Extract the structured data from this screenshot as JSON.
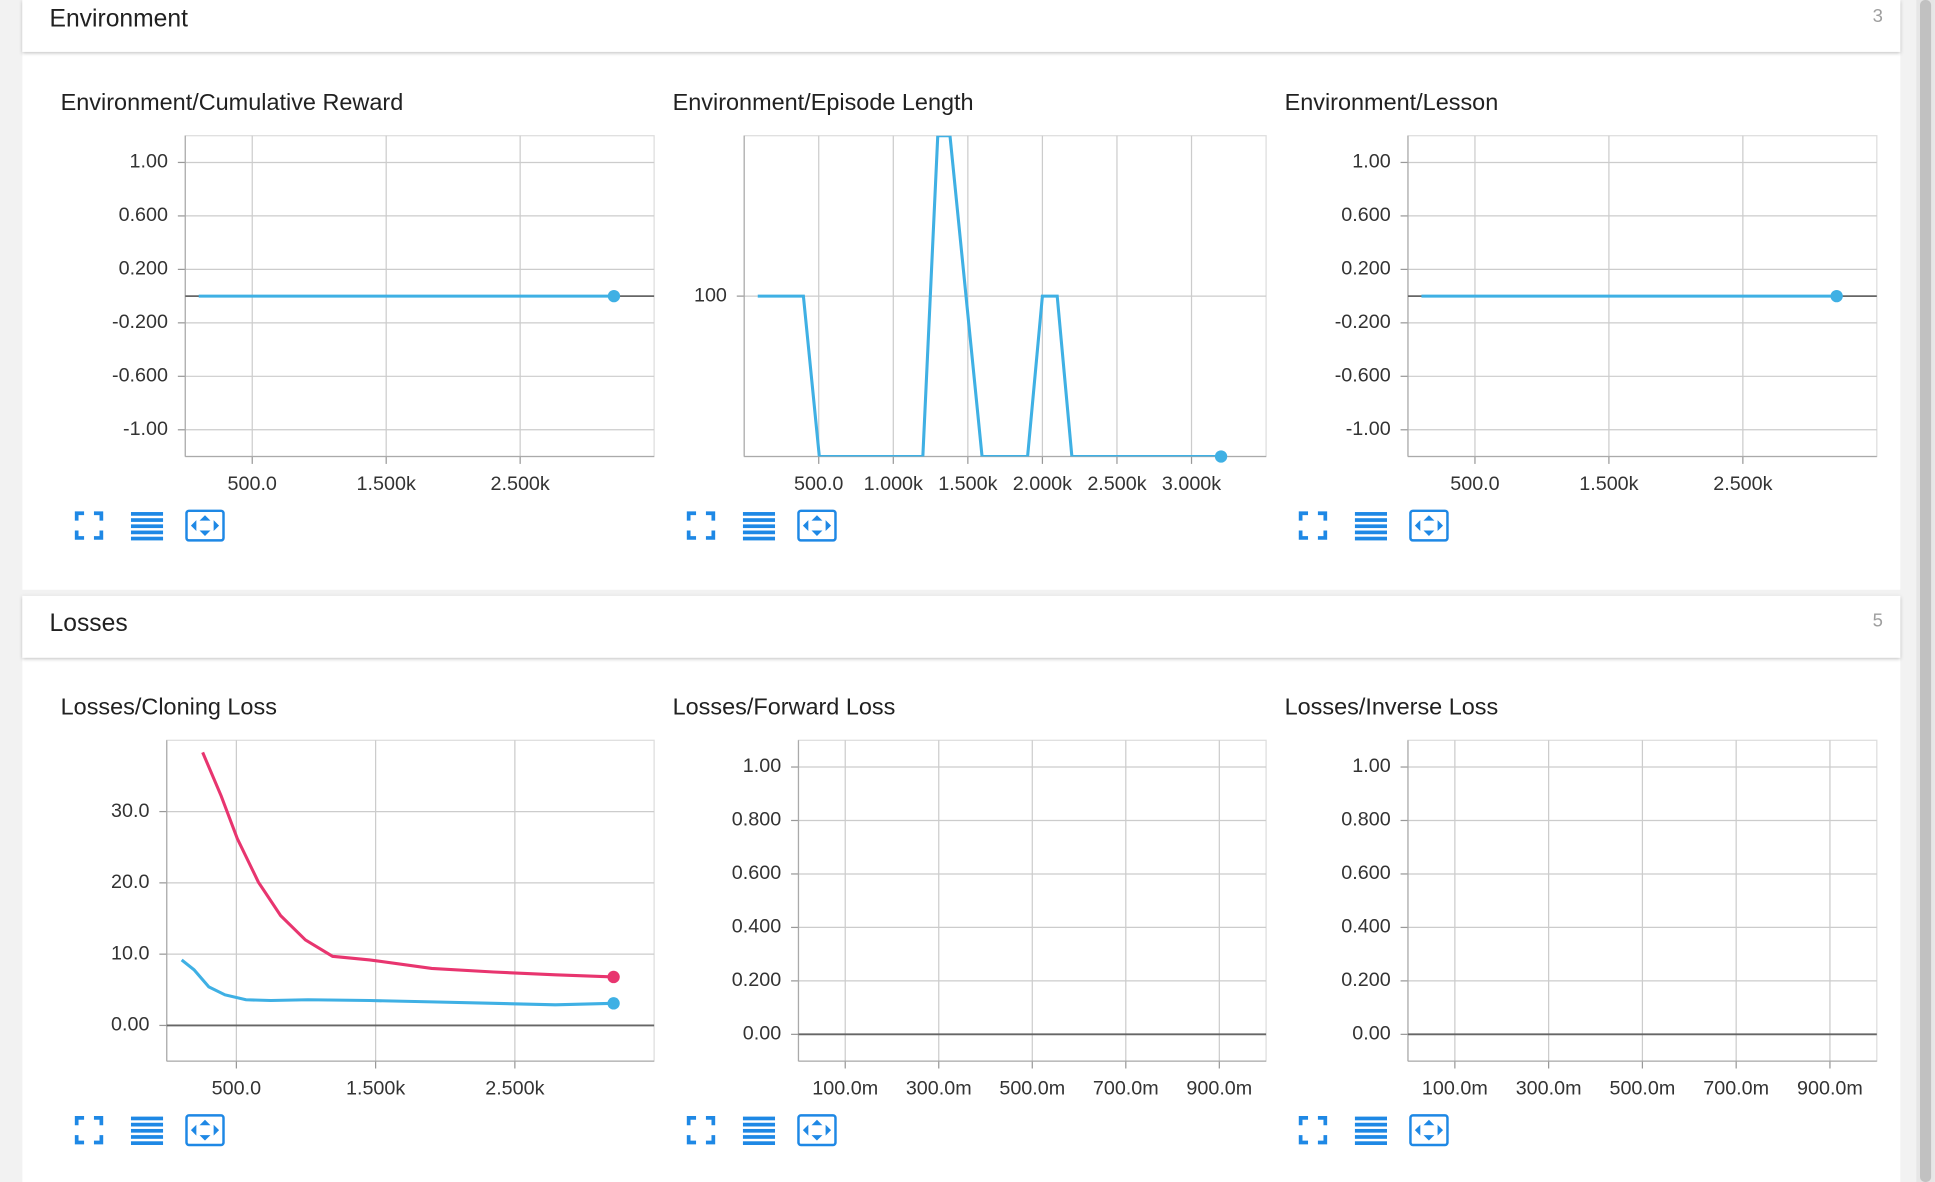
{
  "sections": [
    {
      "title": "Environment",
      "count": 3,
      "charts": [
        {
          "title": "Environment/Cumulative Reward",
          "type": "line",
          "x": [
            100,
            1000,
            2000,
            3200
          ],
          "series": [
            {
              "color": "#3fb0e4",
              "values": [
                0,
                0,
                0,
                0
              ]
            }
          ],
          "xlim": [
            0,
            3500
          ],
          "ylim": [
            -1.2,
            1.2
          ],
          "xticks": [
            {
              "value": 500,
              "label": "500.0"
            },
            {
              "value": 1500,
              "label": "1.500k"
            },
            {
              "value": 2500,
              "label": "2.500k"
            }
          ],
          "yticks": [
            {
              "value": 1,
              "label": "1.00"
            },
            {
              "value": 0.6,
              "label": "0.600"
            },
            {
              "value": 0.2,
              "label": "0.200"
            },
            {
              "value": -0.2,
              "label": "-0.200"
            },
            {
              "value": -0.6,
              "label": "-0.600"
            },
            {
              "value": -1,
              "label": "-1.00"
            }
          ],
          "grid": true
        },
        {
          "title": "Environment/Episode Length",
          "type": "line",
          "x": [
            91,
            397,
            504,
            1198,
            1298,
            1380,
            1595,
            1901,
            2000,
            2099,
            2198,
            3198
          ],
          "series": [
            {
              "color": "#3fb0e4",
              "values": [
                100,
                100,
                99,
                99,
                101,
                101,
                99,
                99,
                100,
                100,
                99,
                99
              ]
            }
          ],
          "xlim": [
            0,
            3500
          ],
          "ylim": [
            99,
            101
          ],
          "xticks": [
            {
              "value": 500,
              "label": "500.0"
            },
            {
              "value": 1000,
              "label": "1.000k"
            },
            {
              "value": 1500,
              "label": "1.500k"
            },
            {
              "value": 2000,
              "label": "2.000k"
            },
            {
              "value": 2500,
              "label": "2.500k"
            },
            {
              "value": 3000,
              "label": "3.000k"
            }
          ],
          "yticks": [
            100
          ],
          "grid": true
        },
        {
          "title": "Environment/Lesson",
          "type": "line",
          "x": [
            100,
            1000,
            2000,
            3200
          ],
          "series": [
            {
              "color": "#3fb0e4",
              "values": [
                0,
                0,
                0,
                0
              ]
            }
          ],
          "xlim": [
            0,
            3500
          ],
          "ylim": [
            -1.2,
            1.2
          ],
          "xticks": [
            {
              "value": 500,
              "label": "500.0"
            },
            {
              "value": 1500,
              "label": "1.500k"
            },
            {
              "value": 2500,
              "label": "2.500k"
            }
          ],
          "yticks": [
            {
              "value": 1,
              "label": "1.00"
            },
            {
              "value": 0.6,
              "label": "0.600"
            },
            {
              "value": 0.2,
              "label": "0.200"
            },
            {
              "value": -0.2,
              "label": "-0.200"
            },
            {
              "value": -0.6,
              "label": "-0.600"
            },
            {
              "value": -1,
              "label": "-1.00"
            }
          ],
          "grid": true
        }
      ]
    },
    {
      "title": "Losses",
      "count": 5,
      "charts": [
        {
          "title": "Losses/Cloning Loss",
          "type": "line",
          "x": [
            107,
            196,
            258,
            302,
            391,
            418,
            507,
            569,
            658,
            747,
            818,
            996,
            1013,
            1191,
            1458,
            1902,
            2347,
            2791,
            3209
          ],
          "series": [
            {
              "color": "#e8356f",
              "values": [
                null,
                null,
                38.3,
                null,
                32.2,
                null,
                26.2,
                null,
                20.1,
                null,
                15.4,
                12.0,
                null,
                9.7,
                9.2,
                8.0,
                7.5,
                7.1,
                6.8
              ]
            },
            {
              "color": "#3fb0e4",
              "values": [
                9.2,
                7.8,
                null,
                5.4,
                null,
                4.3,
                null,
                3.6,
                null,
                3.5,
                null,
                null,
                3.6,
                null,
                3.5,
                3.3,
                3.1,
                2.9,
                3.1
              ]
            }
          ],
          "xlim": [
            0,
            3500
          ],
          "ylim": [
            -5,
            40
          ],
          "xticks": [
            {
              "value": 500,
              "label": "500.0"
            },
            {
              "value": 1500,
              "label": "1.500k"
            },
            {
              "value": 2500,
              "label": "2.500k"
            }
          ],
          "yticks": [
            {
              "value": 30,
              "label": "30.0"
            },
            {
              "value": 20,
              "label": "20.0"
            },
            {
              "value": 10,
              "label": "10.0"
            },
            {
              "value": 0,
              "label": "0.00"
            }
          ],
          "grid": true
        },
        {
          "title": "Losses/Forward Loss",
          "type": "line",
          "xlim": [
            0,
            1
          ],
          "ylim": [
            -0.1,
            1.1
          ],
          "xticks": [
            {
              "value": 0.1,
              "label": "100.0m"
            },
            {
              "value": 0.3,
              "label": "300.0m"
            },
            {
              "value": 0.5,
              "label": "500.0m"
            },
            {
              "value": 0.7,
              "label": "700.0m"
            },
            {
              "value": 0.9,
              "label": "900.0m"
            }
          ],
          "yticks": [
            {
              "value": 1,
              "label": "1.00"
            },
            {
              "value": 0.8,
              "label": "0.800"
            },
            {
              "value": 0.6,
              "label": "0.600"
            },
            {
              "value": 0.4,
              "label": "0.400"
            },
            {
              "value": 0.2,
              "label": "0.200"
            },
            {
              "value": 0,
              "label": "0.00"
            }
          ],
          "grid": true
        },
        {
          "title": "Losses/Inverse Loss",
          "type": "line",
          "xlim": [
            0,
            1
          ],
          "ylim": [
            -0.1,
            1.1
          ],
          "xticks": [
            {
              "value": 0.1,
              "label": "100.0m"
            },
            {
              "value": 0.3,
              "label": "300.0m"
            },
            {
              "value": 0.5,
              "label": "500.0m"
            },
            {
              "value": 0.7,
              "label": "700.0m"
            },
            {
              "value": 0.9,
              "label": "900.0m"
            }
          ],
          "yticks": [
            {
              "value": 1,
              "label": "1.00"
            },
            {
              "value": 0.8,
              "label": "0.800"
            },
            {
              "value": 0.6,
              "label": "0.600"
            },
            {
              "value": 0.4,
              "label": "0.400"
            },
            {
              "value": 0.2,
              "label": "0.200"
            },
            {
              "value": 0,
              "label": "0.00"
            }
          ],
          "grid": true
        }
      ]
    }
  ]
}
